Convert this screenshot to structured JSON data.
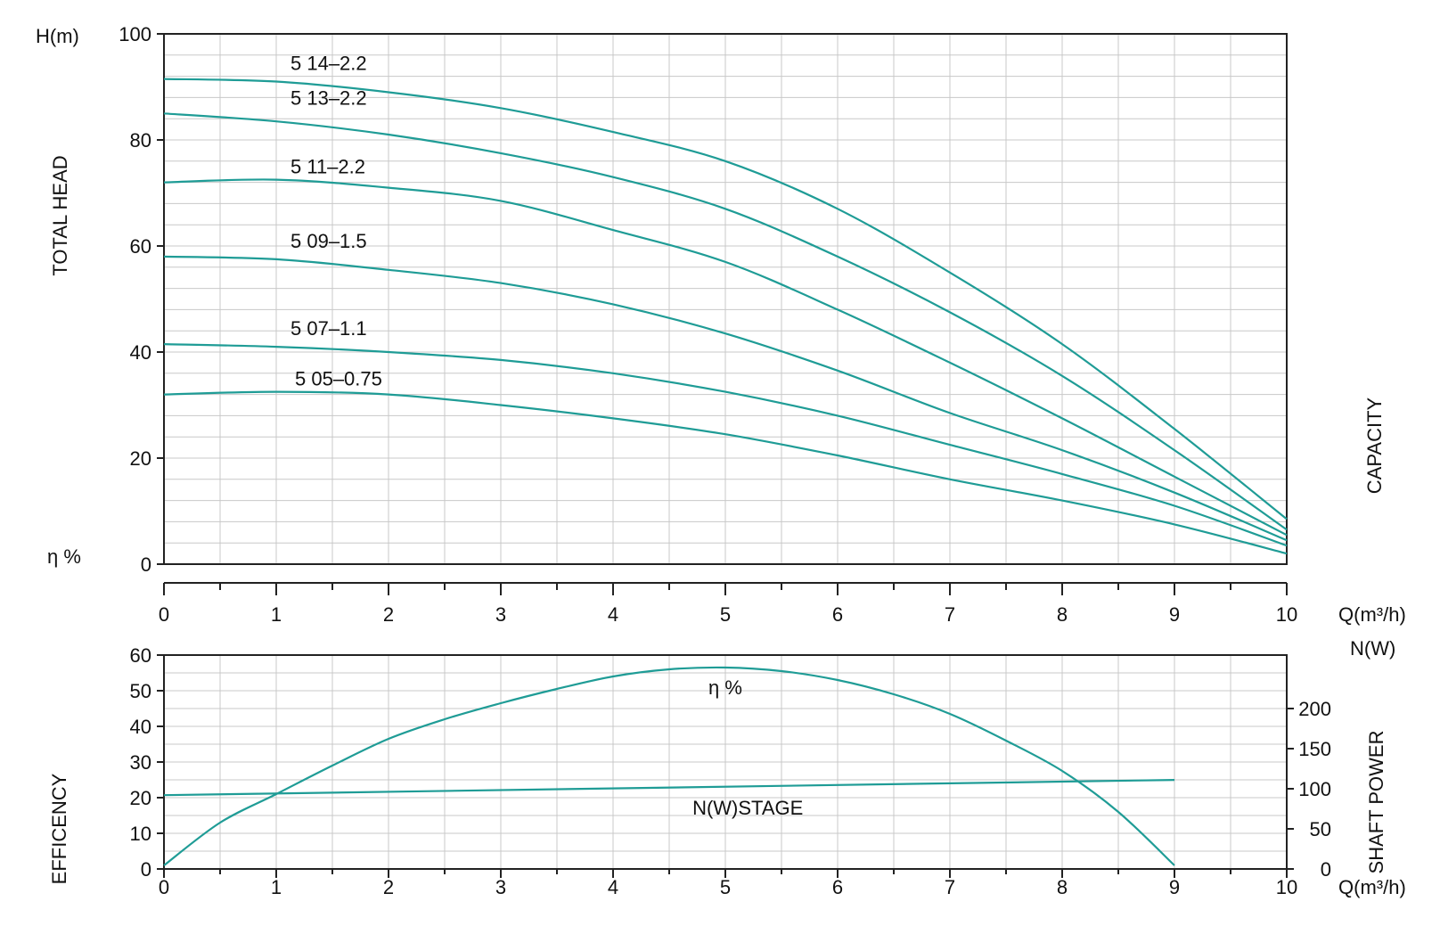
{
  "chart_data": [
    {
      "type": "line",
      "panel": "head",
      "ylabel": "TOTAL HEAD",
      "y_unit": "H(m)",
      "y_bottom_label": "η %",
      "xlabel": "Q(m³/h)",
      "right_label": "CAPACITY",
      "xlim": [
        0,
        10
      ],
      "ylim": [
        0,
        100
      ],
      "x_ticks": [
        0,
        1,
        2,
        3,
        4,
        5,
        6,
        7,
        8,
        9,
        10
      ],
      "y_ticks": [
        0,
        20,
        40,
        60,
        80,
        100
      ],
      "grid": true,
      "line_color": "#1f9c96",
      "x": [
        0,
        1,
        2,
        3,
        4,
        5,
        6,
        7,
        8,
        9,
        10
      ],
      "series": [
        {
          "name": "5 14–2.2",
          "values": [
            91.5,
            91,
            89,
            86,
            81.5,
            76,
            67,
            55,
            41.5,
            25.5,
            8.5
          ]
        },
        {
          "name": "5 13–2.2",
          "values": [
            85,
            83.5,
            81,
            77.5,
            73,
            67,
            58,
            47.5,
            35.5,
            21.5,
            6.5
          ]
        },
        {
          "name": "5 11–2.2",
          "values": [
            72,
            72.5,
            71,
            68.5,
            63,
            57,
            48,
            38,
            27.5,
            16.5,
            5.5
          ]
        },
        {
          "name": "5 09–1.5",
          "values": [
            58,
            57.5,
            55.5,
            53,
            49,
            43.5,
            36.5,
            28.5,
            21.5,
            13.5,
            4.5
          ]
        },
        {
          "name": "5 07–1.1",
          "values": [
            41.5,
            41,
            40,
            38.5,
            36,
            32.5,
            28,
            22.5,
            17,
            11,
            3.5
          ]
        },
        {
          "name": "5 05–0.75",
          "values": [
            32,
            32.5,
            32,
            30,
            27.5,
            24.5,
            20.5,
            16,
            12,
            7.5,
            2
          ]
        }
      ]
    },
    {
      "type": "line",
      "panel": "efficiency_power",
      "ylabel": "EFFICENCY",
      "xlabel": "Q(m³/h)",
      "right_unit": "N(W)",
      "right_label": "SHAFT POWER",
      "xlim": [
        0,
        10
      ],
      "ylim": [
        0,
        60
      ],
      "y2lim": [
        0,
        266.67
      ],
      "x_ticks": [
        0,
        1,
        2,
        3,
        4,
        5,
        6,
        7,
        8,
        9,
        10
      ],
      "y_ticks": [
        0,
        10,
        20,
        30,
        40,
        50,
        60
      ],
      "y2_ticks": [
        0,
        50,
        100,
        150,
        200
      ],
      "grid": true,
      "line_color": "#1f9c96",
      "series": [
        {
          "name": "η %",
          "axis": "left",
          "x": [
            0,
            0.5,
            1,
            1.5,
            2,
            2.5,
            3,
            3.5,
            4,
            4.5,
            5,
            5.5,
            6,
            6.5,
            7,
            7.5,
            8,
            8.5,
            9
          ],
          "values": [
            1,
            13,
            21,
            29,
            36.5,
            42,
            46.5,
            50.5,
            54,
            56,
            56.5,
            55.5,
            53,
            49,
            43.5,
            36,
            27.5,
            16,
            1
          ]
        },
        {
          "name": "N(W)STAGE",
          "axis": "right",
          "x": [
            0,
            9
          ],
          "values": [
            92,
            111
          ]
        }
      ]
    }
  ]
}
